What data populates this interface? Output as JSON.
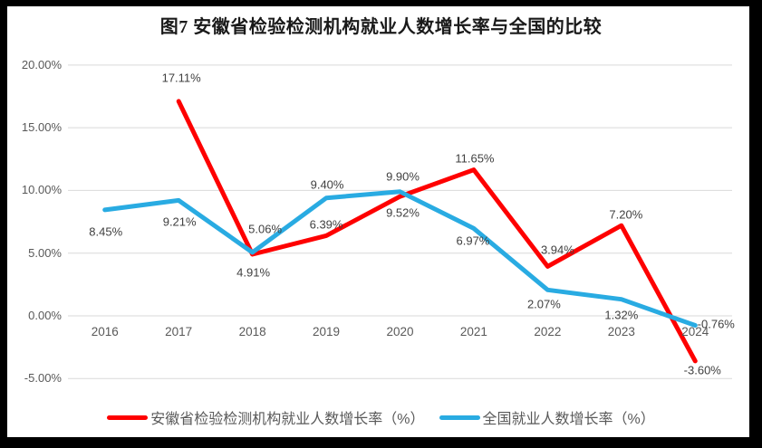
{
  "chart_data": {
    "type": "line",
    "title": "图7  安徽省检验检测机构就业人数增长率与全国的比较",
    "categories": [
      "2016",
      "2017",
      "2018",
      "2019",
      "2020",
      "2021",
      "2022",
      "2023",
      "2024"
    ],
    "series": [
      {
        "key": "anhui",
        "name": "安徽省检验检测机构就业人数增长率（%）",
        "color": "#FE0000",
        "values": [
          null,
          17.11,
          4.91,
          6.39,
          9.52,
          11.65,
          3.94,
          7.2,
          -3.6
        ],
        "labels": [
          null,
          "17.11%",
          "4.91%",
          "6.39%",
          "9.52%",
          "11.65%",
          "3.94%",
          "7.20%",
          "-3.60%"
        ],
        "label_offsets": [
          [
            0,
            0
          ],
          [
            3,
            -26
          ],
          [
            1,
            20
          ],
          [
            0,
            -12
          ],
          [
            3,
            18
          ],
          [
            1,
            -13
          ],
          [
            11,
            -18
          ],
          [
            5,
            -12
          ],
          [
            8,
            10
          ]
        ]
      },
      {
        "key": "national",
        "name": "全国就业人数增长率（%）",
        "color": "#29ABE2",
        "values": [
          8.45,
          9.21,
          5.06,
          9.4,
          9.9,
          6.97,
          2.07,
          1.32,
          -0.76
        ],
        "labels": [
          "8.45%",
          "9.21%",
          "5.06%",
          "9.40%",
          "9.90%",
          "6.97%",
          "2.07%",
          "1.32%",
          "-0.76%"
        ],
        "label_offsets": [
          [
            1,
            24
          ],
          [
            1,
            24
          ],
          [
            14,
            -26
          ],
          [
            1,
            -15
          ],
          [
            3,
            -17
          ],
          [
            -1,
            14
          ],
          [
            -4,
            16
          ],
          [
            0,
            17
          ],
          [
            23,
            -2
          ]
        ]
      }
    ],
    "y_axis": {
      "min": -5,
      "max": 20,
      "ticks": [
        {
          "label": "20.00%",
          "value": 20
        },
        {
          "label": "15.00%",
          "value": 15
        },
        {
          "label": "10.00%",
          "value": 10
        },
        {
          "label": "5.00%",
          "value": 5
        },
        {
          "label": "0.00%",
          "value": 0
        },
        {
          "label": "-5.00%",
          "value": -5
        }
      ]
    },
    "grid": true,
    "gridline_color": "#D9D9D9",
    "legend_position": "bottom"
  }
}
